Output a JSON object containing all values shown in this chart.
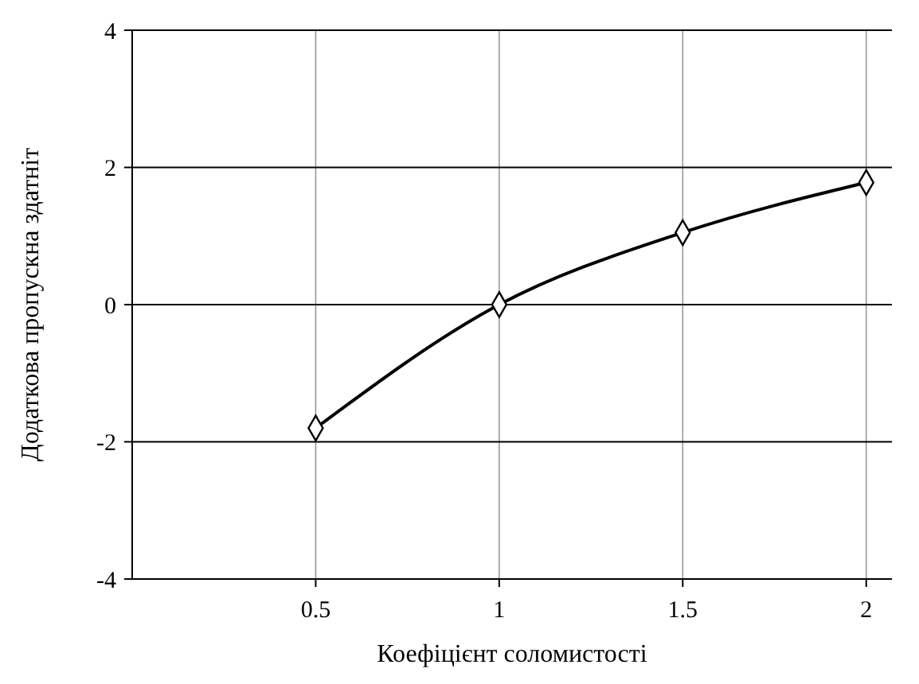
{
  "chart_data": {
    "type": "line",
    "xlabel": "Коефіцієнт соломистості",
    "ylabel": "Додаткова пропускна здатніт",
    "x": [
      0.5,
      1,
      1.5,
      2
    ],
    "series": [
      {
        "color": "#000000",
        "values": [
          -1.8,
          0,
          1.05,
          1.78
        ]
      }
    ],
    "xlim": [
      0,
      2.07
    ],
    "xticks": [
      0.5,
      1,
      1.5,
      2
    ],
    "ylim": [
      -4,
      4
    ],
    "yticks": [
      -4,
      -2,
      0,
      2,
      4
    ],
    "grid": true,
    "marker": "diamond",
    "line_style": "solid"
  }
}
